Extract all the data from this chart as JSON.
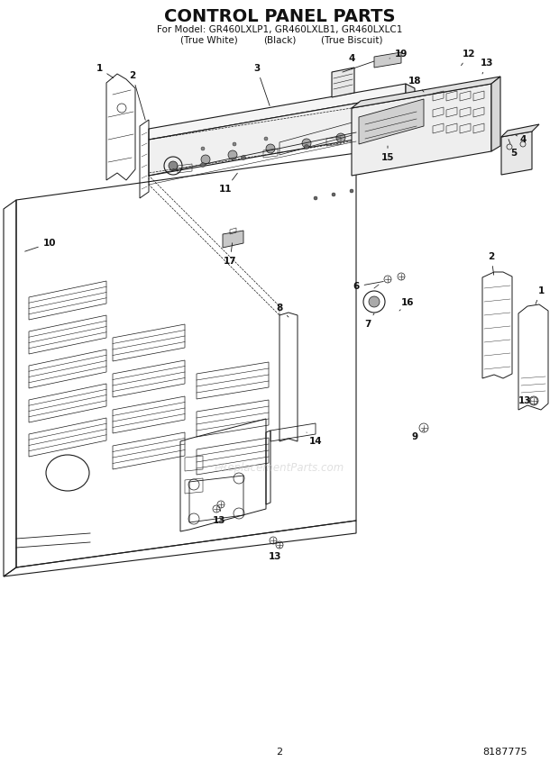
{
  "title": "CONTROL PANEL PARTS",
  "subtitle": "For Model: GR460LXLP1, GR460LXLB1, GR460LXLC1",
  "subtitle2_left": "(True White)",
  "subtitle2_mid": "(Black)",
  "subtitle2_right": "(True Biscuit)",
  "page_number": "2",
  "doc_number": "8187775",
  "watermark": "eReplacementParts.com",
  "bg_color": "#ffffff",
  "line_color": "#1a1a1a",
  "fig_width": 6.2,
  "fig_height": 8.56,
  "dpi": 100
}
